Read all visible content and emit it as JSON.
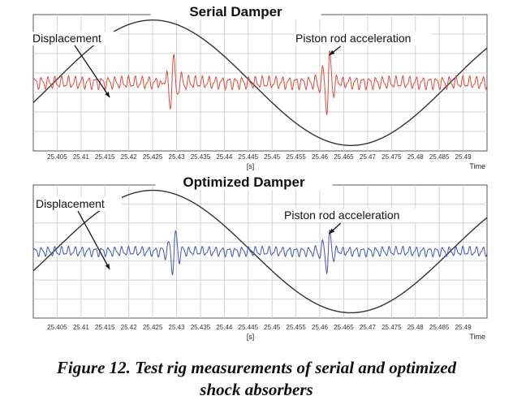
{
  "figure": {
    "caption_line1": "Figure 12. Test rig measurements of serial and optimized",
    "caption_line2": "shock absorbers"
  },
  "chart_data": [
    {
      "type": "line",
      "title": "Serial Damper",
      "xlabel": "Time",
      "x_unit_label": "[s]",
      "xlim": [
        25.4,
        25.495
      ],
      "xticks": [
        "25.405",
        "25.41",
        "25.415",
        "25.42",
        "25.425",
        "25.43",
        "25.435",
        "25.44",
        "25.445",
        "25.45",
        "25.455",
        "25.46",
        "25.465",
        "25.47",
        "25.475",
        "25.48",
        "25.485",
        "25.49"
      ],
      "grid": true,
      "series": [
        {
          "color": "#333333",
          "shape": "sinusoid",
          "period": 0.083,
          "max_at": 25.425,
          "min_at": 25.4665,
          "amplitude_fraction": 0.92
        },
        {
          "color": "#e0483a",
          "shape": "oscillation with impulse spikes",
          "period": 0.0014,
          "amplitude_fraction": 0.09,
          "spikes_at": [
            25.429,
            25.4618
          ]
        }
      ],
      "annotations": [
        {
          "text": "Displacement",
          "target_x": 25.416
        },
        {
          "text": "Piston rod acceleration",
          "target_x": 25.4618
        }
      ]
    },
    {
      "type": "line",
      "title": "Optimized Damper",
      "xlabel": "Time",
      "x_unit_label": "[s]",
      "xlim": [
        25.4,
        25.495
      ],
      "xticks": [
        "25.405",
        "25.41",
        "25.415",
        "25.42",
        "25.425",
        "25.43",
        "25.435",
        "25.44",
        "25.445",
        "25.45",
        "25.455",
        "25.46",
        "25.465",
        "25.47",
        "25.475",
        "25.48",
        "25.485",
        "25.49"
      ],
      "grid": true,
      "series": [
        {
          "color": "#333333",
          "shape": "sinusoid",
          "period": 0.083,
          "max_at": 25.425,
          "min_at": 25.4665,
          "amplitude_fraction": 0.92
        },
        {
          "color": "#3e54b8",
          "shape": "oscillation with impulse spikes",
          "period": 0.0014,
          "amplitude_fraction": 0.07,
          "spikes_at": [
            25.4295,
            25.4618
          ]
        }
      ],
      "annotations": [
        {
          "text": "Displacement",
          "target_x": 25.416
        },
        {
          "text": "Piston rod acceleration",
          "target_x": 25.4618
        }
      ]
    }
  ]
}
